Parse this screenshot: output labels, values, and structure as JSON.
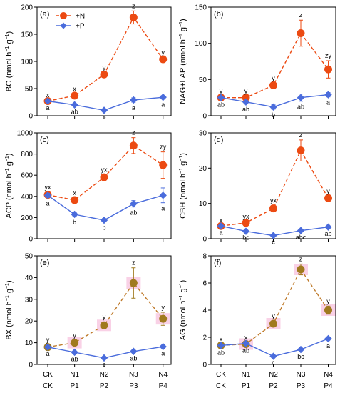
{
  "colors": {
    "n_series": "#ec4a12",
    "p_series": "#4a6cdc",
    "n_series_olive": "#a07a1e",
    "n_series_olive_dash": "#bf7a2a",
    "halo": "#f7c6e0",
    "axis": "#000000"
  },
  "legend": {
    "n_label": "+N",
    "p_label": "+P",
    "n_marker": "circle",
    "p_marker": "diamond",
    "placement": "top-left of panel (a)"
  },
  "x_categories_row1": [
    "CK",
    "N1",
    "N2",
    "N3",
    "N4"
  ],
  "x_categories_row2": [
    "CK",
    "P1",
    "P2",
    "P3",
    "P4"
  ],
  "chart_data": [
    {
      "type": "line",
      "panel": "(a)",
      "ylabel": "BG (nmol h⁻¹ g⁻¹)",
      "ylabel_main": "BG (nmol h",
      "ylim": [
        0,
        200
      ],
      "yticks": [
        "0",
        "50",
        "100",
        "150",
        "200"
      ],
      "yticks_values": [
        0,
        50,
        100,
        150,
        200
      ],
      "categories": [
        "CK",
        "N1",
        "N2",
        "N3",
        "N4"
      ],
      "series": [
        {
          "name": "+N",
          "values": [
            27,
            37,
            76,
            181,
            104
          ],
          "errors": [
            2,
            3,
            3,
            12,
            3
          ],
          "letters": [
            "x",
            "x",
            "y",
            "z",
            "y"
          ]
        },
        {
          "name": "+P",
          "values": [
            27,
            20,
            10,
            29,
            34
          ],
          "errors": [
            2,
            2,
            2,
            4,
            3
          ],
          "letters": [
            "a",
            "ab",
            "b",
            "a",
            "a"
          ]
        }
      ]
    },
    {
      "type": "line",
      "panel": "(b)",
      "ylabel": "NAG+LAP (nmol h⁻¹ g⁻¹)",
      "ylabel_main": "NAG+LAP (nmol h",
      "ylim": [
        0,
        150
      ],
      "yticks": [
        "0",
        "50",
        "100",
        "150"
      ],
      "yticks_values": [
        0,
        50,
        100,
        150
      ],
      "categories": [
        "CK",
        "N1",
        "N2",
        "N3",
        "N4"
      ],
      "series": [
        {
          "name": "+N",
          "values": [
            25,
            25,
            42,
            114,
            64
          ],
          "errors": [
            2,
            2,
            3,
            18,
            12
          ],
          "letters": [
            "y",
            "y",
            "y",
            "z",
            "zy"
          ]
        },
        {
          "name": "+P",
          "values": [
            25,
            19,
            12,
            25,
            29
          ],
          "errors": [
            2,
            2,
            3,
            5,
            3
          ],
          "letters": [
            "ab",
            "ab",
            "b",
            "ab",
            "a"
          ]
        }
      ]
    },
    {
      "type": "line",
      "panel": "(c)",
      "ylabel": "ACP (nmol h⁻¹ g⁻¹)",
      "ylabel_main": "ACP (nmol h",
      "ylim": [
        0,
        1000
      ],
      "yticks": [
        "0",
        "200",
        "400",
        "600",
        "800",
        "1000"
      ],
      "yticks_values": [
        0,
        200,
        400,
        600,
        800,
        1000
      ],
      "categories": [
        "CK",
        "N1",
        "N2",
        "N3",
        "N4"
      ],
      "series": [
        {
          "name": "+N",
          "values": [
            415,
            365,
            580,
            880,
            695
          ],
          "errors": [
            25,
            20,
            25,
            75,
            125
          ],
          "letters": [
            "yx",
            "x",
            "yx",
            "z",
            "zy"
          ]
        },
        {
          "name": "+P",
          "values": [
            410,
            230,
            175,
            330,
            410
          ],
          "errors": [
            20,
            20,
            15,
            30,
            70
          ],
          "letters": [
            "a",
            "b",
            "b",
            "ab",
            "a"
          ]
        }
      ]
    },
    {
      "type": "line",
      "panel": "(d)",
      "ylabel": "CBH (nmol h⁻¹ g⁻¹)",
      "ylabel_main": "CBH (nmol h",
      "ylim": [
        0,
        30
      ],
      "yticks": [
        "0",
        "10",
        "20",
        "30"
      ],
      "yticks_values": [
        0,
        10,
        20,
        30
      ],
      "categories": [
        "CK",
        "N1",
        "N2",
        "N3",
        "N4"
      ],
      "series": [
        {
          "name": "+N",
          "values": [
            3.6,
            4.5,
            8.6,
            25,
            11.5
          ],
          "errors": [
            0.3,
            0.4,
            0.8,
            3,
            0.6
          ],
          "letters": [
            "x",
            "yx",
            "yx",
            "z",
            "y"
          ]
        },
        {
          "name": "+P",
          "values": [
            3.6,
            2.1,
            0.9,
            2.3,
            3.3
          ],
          "errors": [
            0.3,
            0.2,
            0.2,
            0.3,
            0.3
          ],
          "letters": [
            "a",
            "bc",
            "c",
            "abc",
            "ab"
          ]
        }
      ]
    },
    {
      "type": "line",
      "panel": "(e)",
      "ylabel": "BX (nmol h⁻¹ g⁻¹)",
      "ylabel_main": "BX (nmol h",
      "ylim": [
        0,
        50
      ],
      "yticks": [
        "0",
        "10",
        "20",
        "30",
        "40",
        "50"
      ],
      "yticks_values": [
        0,
        10,
        20,
        30,
        40,
        50
      ],
      "categories": [
        "CK",
        "N1",
        "N2",
        "N3",
        "N4"
      ],
      "series": [
        {
          "name": "+N",
          "values": [
            8,
            10,
            18,
            37.5,
            21
          ],
          "errors": [
            1,
            1,
            1.5,
            7,
            3
          ],
          "letters": [
            "y",
            "y",
            "y",
            "z",
            "y"
          ]
        },
        {
          "name": "+P",
          "values": [
            8,
            5.6,
            3,
            6,
            8.2
          ],
          "errors": [
            0.5,
            0.5,
            0.3,
            0.5,
            0.5
          ],
          "letters": [
            "a",
            "ab",
            "b",
            "ab",
            "a"
          ]
        }
      ]
    },
    {
      "type": "line",
      "panel": "(f)",
      "ylabel": "AG (nmol h⁻¹ g⁻¹)",
      "ylabel_main": "AG (nmol h",
      "ylim": [
        0,
        8
      ],
      "yticks": [
        "0",
        "2",
        "4",
        "6",
        "8"
      ],
      "yticks_values": [
        0,
        2,
        4,
        6,
        8
      ],
      "categories": [
        "CK",
        "N1",
        "N2",
        "N3",
        "N4"
      ],
      "series": [
        {
          "name": "+N",
          "values": [
            1.4,
            1.5,
            3,
            7,
            4
          ],
          "errors": [
            0.1,
            0.1,
            0.2,
            0.4,
            0.3
          ],
          "letters": [
            "x",
            "x",
            "y",
            "z",
            "y"
          ]
        },
        {
          "name": "+P",
          "values": [
            1.4,
            1.55,
            0.6,
            1.1,
            1.9
          ],
          "errors": [
            0.1,
            0.1,
            0.05,
            0.1,
            0.1
          ],
          "letters": [
            "ab",
            "ab",
            "c",
            "bc",
            "a"
          ]
        }
      ]
    }
  ]
}
